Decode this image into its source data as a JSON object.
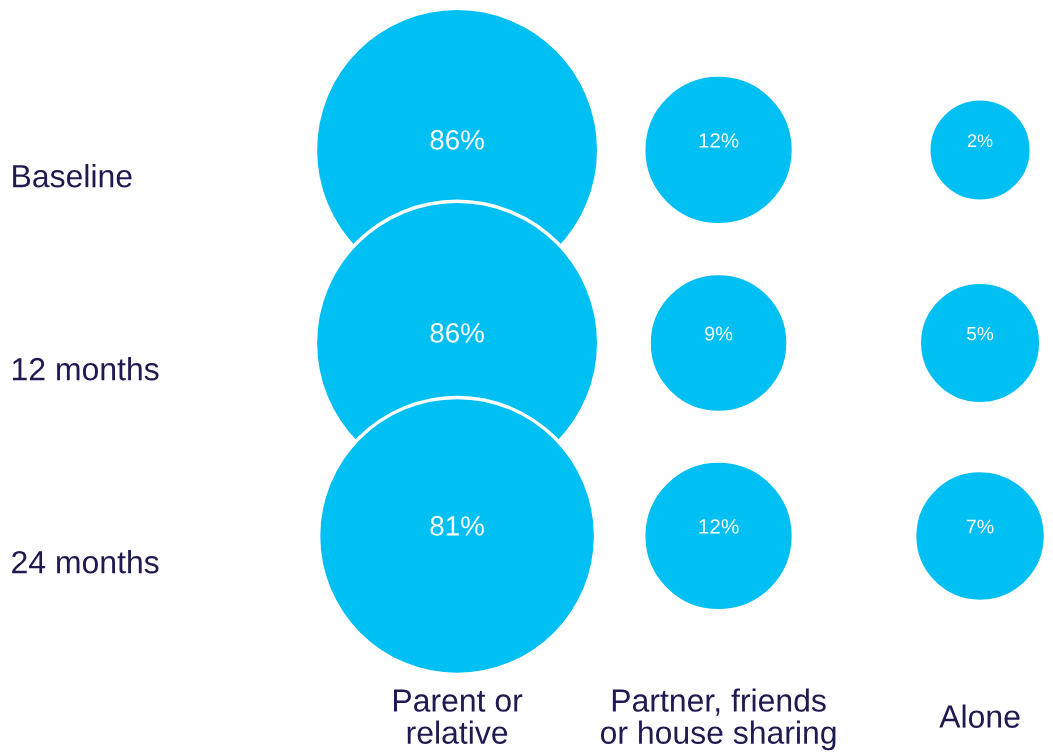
{
  "chart_data": {
    "type": "other",
    "categories": [
      "Parent or\nrelative",
      "Partner, friends\nor house sharing",
      "Alone"
    ],
    "annotations": [
      "Baseline",
      "12 months",
      "24 months"
    ],
    "series": [
      {
        "color": "#00bff3",
        "values": [
          86,
          12,
          2
        ],
        "value_labels": [
          "86%",
          "12%",
          "2%"
        ]
      },
      {
        "color": "#00bff3",
        "values": [
          86,
          9,
          5
        ],
        "value_labels": [
          "86%",
          "9%",
          "5%"
        ]
      },
      {
        "color": "#00bff3",
        "values": [
          81,
          12,
          7
        ],
        "value_labels": [
          "81%",
          "12%",
          "7%"
        ]
      }
    ]
  }
}
